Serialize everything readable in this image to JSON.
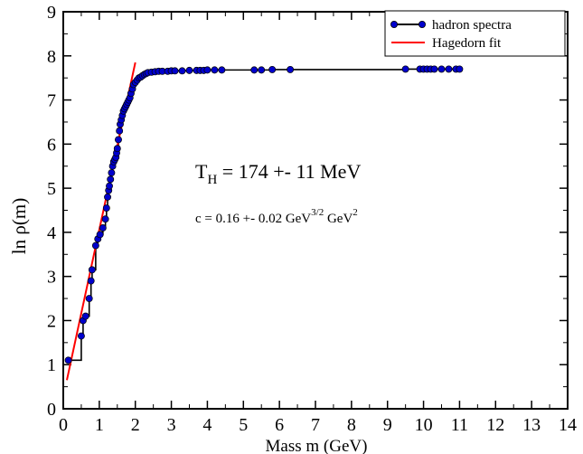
{
  "chart_data": {
    "type": "line",
    "xlabel": "Mass m (GeV)",
    "ylabel_main": "ln ρ(m)",
    "xlim": [
      0,
      14
    ],
    "ylim": [
      0,
      9
    ],
    "x_ticks": [
      "0",
      "1",
      "2",
      "3",
      "4",
      "5",
      "6",
      "7",
      "8",
      "9",
      "10",
      "11",
      "12",
      "13",
      "14"
    ],
    "y_ticks": [
      "0",
      "1",
      "2",
      "3",
      "4",
      "5",
      "6",
      "7",
      "8",
      "9"
    ],
    "legend": {
      "position": "top-right",
      "entries": [
        {
          "label": "hadron spectra",
          "color": "#000000",
          "marker_color": "#0000cc"
        },
        {
          "label": "Hagedorn fit",
          "color": "#ff0000"
        }
      ]
    },
    "annotations": {
      "th_main": "T",
      "th_sub": "H",
      "th_rest": " = 174  +-  11  MeV",
      "c_main": "c = 0.16 +- 0.02  GeV",
      "c_sup1": "3/2",
      "c_mid": "  GeV",
      "c_sup2": "2"
    },
    "series": [
      {
        "name": "hadron spectra",
        "color": "#000000",
        "marker_color": "#0000cc",
        "x": [
          0.14,
          0.5,
          0.55,
          0.62,
          0.72,
          0.77,
          0.8,
          0.9,
          0.96,
          1.02,
          1.1,
          1.17,
          1.2,
          1.23,
          1.26,
          1.28,
          1.31,
          1.34,
          1.37,
          1.4,
          1.43,
          1.46,
          1.48,
          1.5,
          1.53,
          1.56,
          1.58,
          1.61,
          1.64,
          1.67,
          1.7,
          1.73,
          1.76,
          1.79,
          1.82,
          1.85,
          1.88,
          1.92,
          1.95,
          2.0,
          2.05,
          2.1,
          2.15,
          2.2,
          2.25,
          2.3,
          2.35,
          2.45,
          2.55,
          2.65,
          2.75,
          2.9,
          3.0,
          3.1,
          3.3,
          3.5,
          3.7,
          3.8,
          3.9,
          4.0,
          4.2,
          4.4,
          5.3,
          5.5,
          5.8,
          6.3,
          9.5,
          9.9,
          10.0,
          10.1,
          10.2,
          10.3,
          10.5,
          10.7,
          10.9,
          11.0
        ],
        "y": [
          1.1,
          1.65,
          2.0,
          2.1,
          2.5,
          2.9,
          3.15,
          3.7,
          3.85,
          3.95,
          4.1,
          4.3,
          4.55,
          4.8,
          4.95,
          5.05,
          5.2,
          5.35,
          5.5,
          5.6,
          5.65,
          5.7,
          5.8,
          5.9,
          6.1,
          6.3,
          6.45,
          6.55,
          6.65,
          6.75,
          6.8,
          6.85,
          6.9,
          6.95,
          7.0,
          7.05,
          7.15,
          7.25,
          7.35,
          7.4,
          7.45,
          7.5,
          7.52,
          7.55,
          7.58,
          7.6,
          7.62,
          7.63,
          7.64,
          7.65,
          7.65,
          7.65,
          7.66,
          7.66,
          7.66,
          7.67,
          7.67,
          7.67,
          7.67,
          7.68,
          7.68,
          7.68,
          7.68,
          7.68,
          7.69,
          7.69,
          7.7,
          7.7,
          7.7,
          7.7,
          7.7,
          7.7,
          7.7,
          7.7,
          7.7,
          7.7
        ]
      },
      {
        "name": "Hagedorn fit",
        "color": "#ff0000",
        "x": [
          0.1,
          2.0
        ],
        "y": [
          0.65,
          7.85
        ]
      }
    ]
  }
}
